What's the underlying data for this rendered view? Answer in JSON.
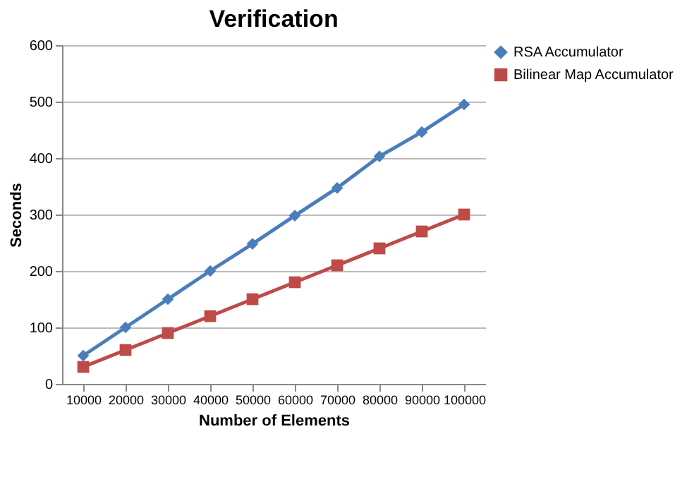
{
  "chart_data": {
    "type": "line",
    "title": "Verification",
    "xlabel": "Number of Elements",
    "ylabel": "Seconds",
    "categories": [
      "10000",
      "20000",
      "30000",
      "40000",
      "50000",
      "60000",
      "70000",
      "80000",
      "90000",
      "100000"
    ],
    "series": [
      {
        "name": "RSA Accumulator",
        "color": "#4a7ebb",
        "marker": "diamond",
        "values": [
          50,
          100,
          150,
          200,
          248,
          298,
          347,
          403,
          446,
          495
        ]
      },
      {
        "name": "Bilinear Map Accumulator",
        "color": "#be4b48",
        "marker": "square",
        "values": [
          30,
          60,
          90,
          120,
          150,
          180,
          210,
          240,
          270,
          300
        ]
      }
    ],
    "ylim": [
      0,
      600
    ],
    "yticks": [
      0,
      100,
      200,
      300,
      400,
      500,
      600
    ],
    "grid": "y",
    "legend": "right"
  }
}
